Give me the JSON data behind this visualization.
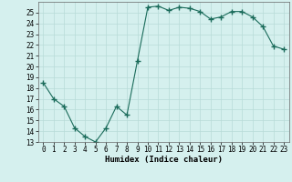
{
  "x": [
    0,
    1,
    2,
    3,
    4,
    5,
    6,
    7,
    8,
    9,
    10,
    11,
    12,
    13,
    14,
    15,
    16,
    17,
    18,
    19,
    20,
    21,
    22,
    23
  ],
  "y": [
    18.5,
    17.0,
    16.3,
    14.3,
    13.5,
    13.0,
    14.3,
    16.3,
    15.5,
    20.5,
    25.5,
    25.6,
    25.2,
    25.5,
    25.4,
    25.1,
    24.4,
    24.6,
    25.1,
    25.1,
    24.6,
    23.7,
    21.9,
    21.6
  ],
  "line_color": "#1a6b5a",
  "marker": "+",
  "marker_size": 4,
  "bg_color": "#d5f0ee",
  "grid_color": "#b8dbd8",
  "xlabel": "Humidex (Indice chaleur)",
  "ylim": [
    13,
    26
  ],
  "xlim": [
    -0.5,
    23.5
  ],
  "yticks": [
    13,
    14,
    15,
    16,
    17,
    18,
    19,
    20,
    21,
    22,
    23,
    24,
    25
  ],
  "xticks": [
    0,
    1,
    2,
    3,
    4,
    5,
    6,
    7,
    8,
    9,
    10,
    11,
    12,
    13,
    14,
    15,
    16,
    17,
    18,
    19,
    20,
    21,
    22,
    23
  ],
  "tick_fontsize": 5.5,
  "xlabel_fontsize": 6.5,
  "linewidth": 0.8
}
